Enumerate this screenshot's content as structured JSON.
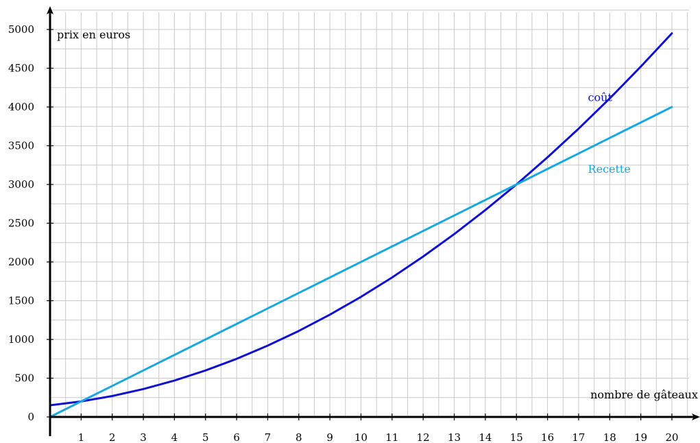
{
  "chart_data": {
    "type": "line",
    "title": "",
    "xlabel": "nombre de gâteaux",
    "ylabel": "prix en euros",
    "xlim": [
      0,
      20
    ],
    "ylim": [
      0,
      5000
    ],
    "grid": true,
    "x_ticks": [
      1,
      2,
      3,
      4,
      5,
      6,
      7,
      8,
      9,
      10,
      11,
      12,
      13,
      14,
      15,
      16,
      17,
      18,
      19,
      20
    ],
    "y_ticks": [
      0,
      500,
      1000,
      1500,
      2000,
      2500,
      3000,
      3500,
      4000,
      4500,
      5000
    ],
    "series": [
      {
        "name": "coût",
        "color": "#1010d0",
        "x": [
          0,
          1,
          2,
          3,
          4,
          5,
          6,
          7,
          8,
          9,
          10,
          11,
          12,
          13,
          14,
          15,
          16,
          17,
          18,
          19,
          20
        ],
        "values": [
          150,
          200,
          270,
          360,
          470,
          600,
          750,
          920,
          1110,
          1320,
          1550,
          1800,
          2070,
          2360,
          2670,
          3000,
          3350,
          3720,
          4110,
          4520,
          4950
        ]
      },
      {
        "name": "Recette",
        "color": "#18a8e0",
        "x": [
          0,
          1,
          2,
          3,
          4,
          5,
          6,
          7,
          8,
          9,
          10,
          11,
          12,
          13,
          14,
          15,
          16,
          17,
          18,
          19,
          20
        ],
        "values": [
          0,
          200,
          400,
          600,
          800,
          1000,
          1200,
          1400,
          1600,
          1800,
          2000,
          2200,
          2400,
          2600,
          2800,
          3000,
          3200,
          3400,
          3600,
          3800,
          4000
        ]
      }
    ]
  }
}
